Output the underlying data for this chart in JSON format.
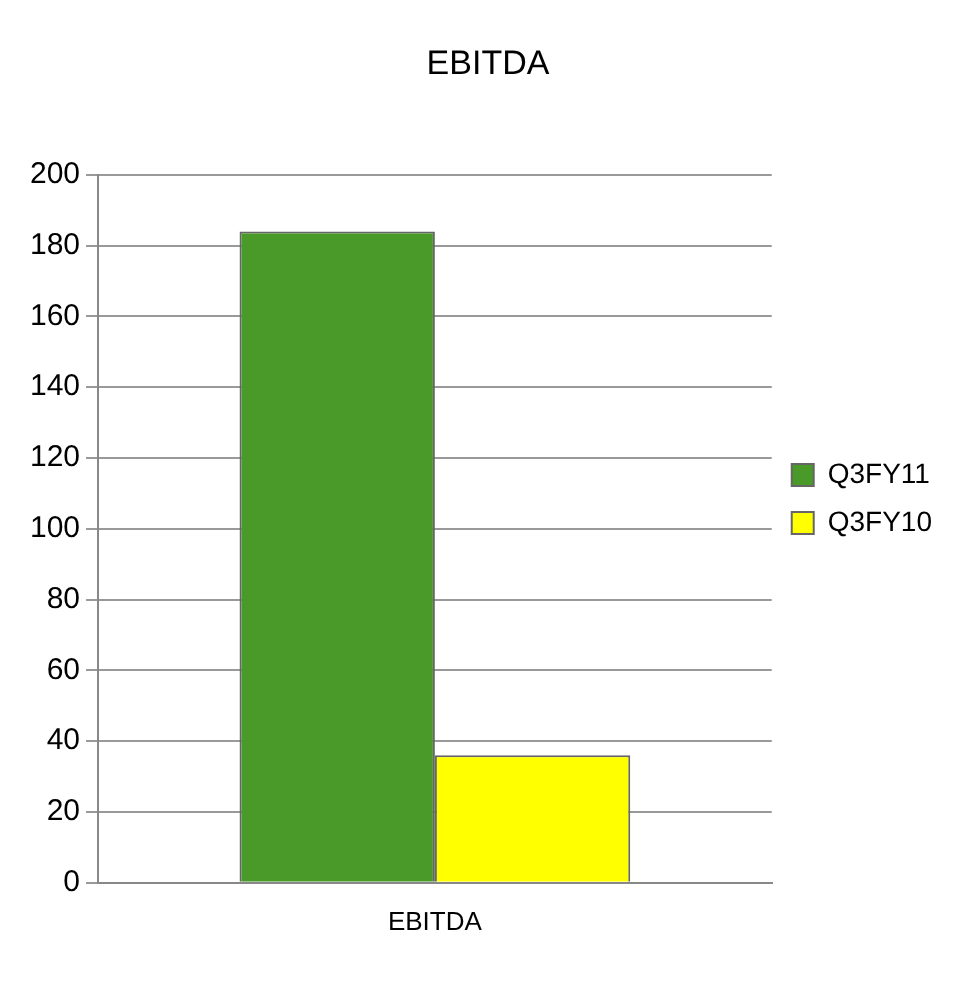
{
  "chart_data": {
    "type": "bar",
    "title": "EBITDA",
    "categories": [
      "EBITDA"
    ],
    "series": [
      {
        "name": "Q3FY11",
        "color": "#4a9a2a",
        "values": [
          184
        ]
      },
      {
        "name": "Q3FY10",
        "color": "#ffff00",
        "values": [
          36
        ]
      }
    ],
    "ylim": [
      0,
      200
    ],
    "yticks": [
      0,
      20,
      40,
      60,
      80,
      100,
      120,
      140,
      160,
      180,
      200
    ],
    "grid": "y",
    "legend": "right"
  }
}
